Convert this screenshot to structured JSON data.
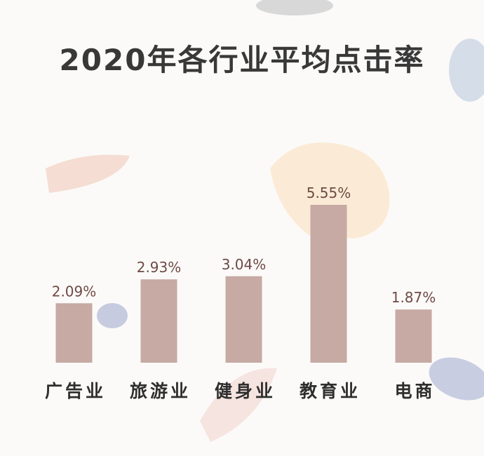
{
  "chart_data": {
    "type": "bar",
    "title": "2020年各行业平均点击率",
    "categories": [
      "广告业",
      "旅游业",
      "健身业",
      "教育业",
      "电商"
    ],
    "values": [
      2.09,
      2.93,
      3.04,
      5.55,
      1.87
    ],
    "value_labels": [
      "2.09%",
      "2.93%",
      "3.04%",
      "5.55%",
      "1.87%"
    ],
    "color": "#c6aaa3"
  }
}
